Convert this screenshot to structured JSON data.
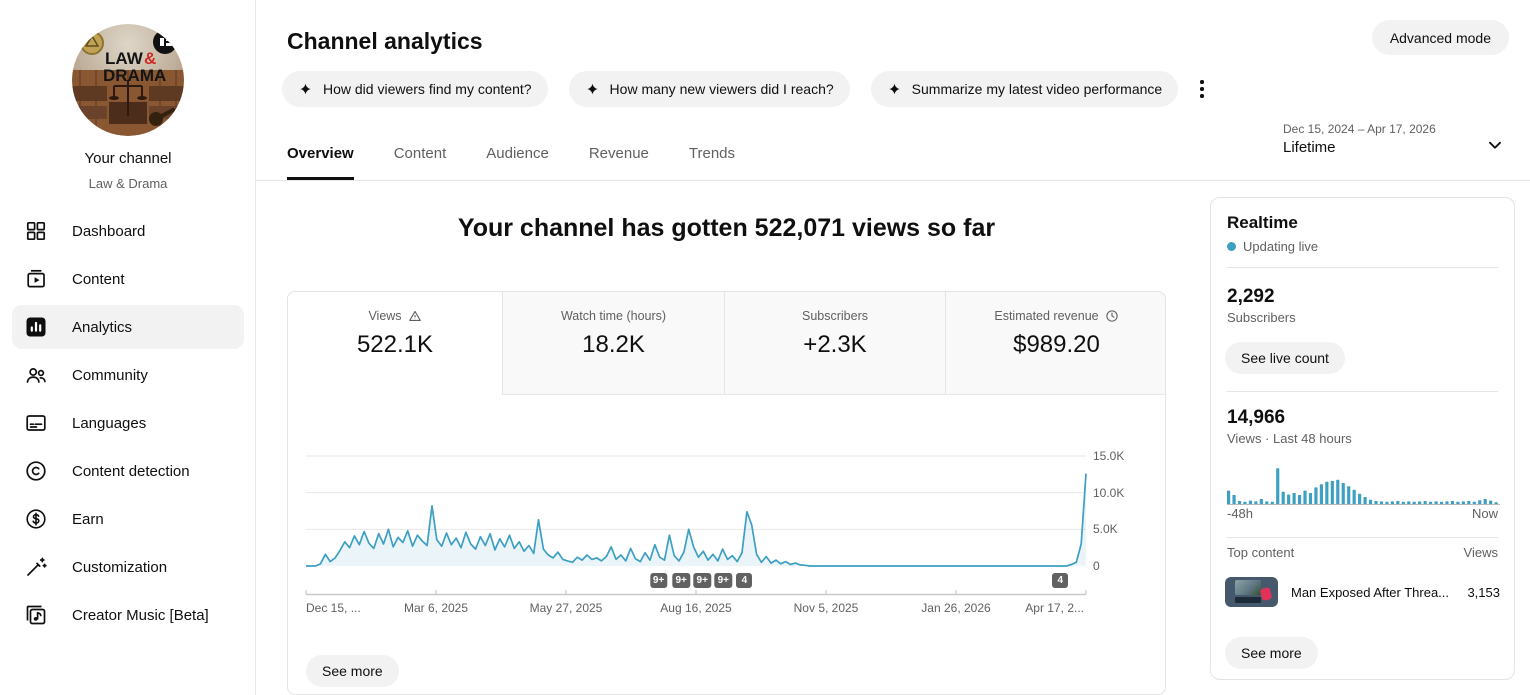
{
  "sidebar": {
    "channel_name": "Your channel",
    "channel_handle": "Law & Drama",
    "avatar_text_line1": "LAW &",
    "avatar_text_line2": "DRAMA",
    "items": [
      {
        "label": "Dashboard",
        "icon": "dashboard",
        "active": false
      },
      {
        "label": "Content",
        "icon": "content",
        "active": false
      },
      {
        "label": "Analytics",
        "icon": "analytics",
        "active": true
      },
      {
        "label": "Community",
        "icon": "community",
        "active": false
      },
      {
        "label": "Languages",
        "icon": "languages",
        "active": false
      },
      {
        "label": "Content detection",
        "icon": "content-detection",
        "active": false
      },
      {
        "label": "Earn",
        "icon": "earn",
        "active": false
      },
      {
        "label": "Customization",
        "icon": "customization",
        "active": false
      },
      {
        "label": "Creator Music [Beta]",
        "icon": "creator-music",
        "active": false
      }
    ]
  },
  "header": {
    "title": "Channel analytics",
    "advanced_mode": "Advanced mode",
    "chips": [
      "How did viewers find my content?",
      "How many new viewers did I reach?",
      "Summarize my latest video performance"
    ]
  },
  "tabs": [
    {
      "label": "Overview",
      "active": true
    },
    {
      "label": "Content",
      "active": false
    },
    {
      "label": "Audience",
      "active": false
    },
    {
      "label": "Revenue",
      "active": false
    },
    {
      "label": "Trends",
      "active": false
    }
  ],
  "date_picker": {
    "range": "Dec 15, 2024 – Apr 17, 2026",
    "preset": "Lifetime"
  },
  "overview": {
    "headline": "Your channel has gotten 522,071 views so far",
    "metrics": [
      {
        "label": "Views",
        "value": "522.1K",
        "icon": "warning",
        "active": true
      },
      {
        "label": "Watch time (hours)",
        "value": "18.2K",
        "icon": null,
        "active": false
      },
      {
        "label": "Subscribers",
        "value": "+2.3K",
        "icon": null,
        "active": false
      },
      {
        "label": "Estimated revenue",
        "value": "$989.20",
        "icon": "clock",
        "active": false
      }
    ],
    "see_more": "See more"
  },
  "realtime": {
    "title": "Realtime",
    "status": "Updating live",
    "subscribers_value": "2,292",
    "subscribers_label": "Subscribers",
    "live_count_button": "See live count",
    "views_value": "14,966",
    "views_label": "Views · Last 48 hours",
    "top_content_label": "Top content",
    "views_col_label": "Views",
    "top_content": [
      {
        "title": "Man Exposed After Threa...",
        "views": "3,153"
      }
    ],
    "see_more": "See more"
  },
  "chart_data": [
    {
      "type": "area",
      "title": "Channel views over time (Lifetime)",
      "x_range": [
        "Dec 15, 2024",
        "Apr 17, 2026"
      ],
      "x_tick_labels": [
        "Dec 15, ...",
        "Mar 6, 2025",
        "May 27, 2025",
        "Aug 16, 2025",
        "Nov 5, 2025",
        "Jan 26, 2026",
        "Apr 17, 2..."
      ],
      "y_tick_labels": [
        "15.0K",
        "10.0K",
        "5.0K",
        "0"
      ],
      "ylim": [
        0,
        15000
      ],
      "grid": true,
      "line_color": "#3d9fc2",
      "fill_color": "rgba(61,159,194,0.10)",
      "values": [
        0,
        0,
        0,
        300,
        1600,
        600,
        1100,
        2100,
        3300,
        2500,
        4100,
        2900,
        4700,
        3100,
        2400,
        4400,
        3000,
        5000,
        2600,
        3900,
        3200,
        4800,
        2700,
        4200,
        3400,
        2800,
        8200,
        3600,
        2700,
        4500,
        2900,
        3800,
        2500,
        4600,
        3000,
        2300,
        4000,
        2800,
        4400,
        2200,
        3700,
        2600,
        4200,
        2400,
        3300,
        2000,
        2800,
        1700,
        6300,
        2300,
        1500,
        1100,
        1900,
        900,
        700,
        500,
        1200,
        800,
        1500,
        900,
        1100,
        700,
        1300,
        2600,
        900,
        1500,
        700,
        2400,
        1000,
        600,
        1800,
        800,
        2900,
        1200,
        800,
        4200,
        1400,
        700,
        1900,
        5000,
        2600,
        1200,
        2000,
        800,
        1600,
        700,
        2300,
        900,
        1400,
        600,
        1800,
        7400,
        5600,
        1600,
        500,
        1300,
        400,
        800,
        300,
        600,
        200,
        400,
        150,
        100,
        0,
        0,
        0,
        0,
        0,
        0,
        0,
        0,
        0,
        0,
        0,
        0,
        0,
        0,
        0,
        0,
        0,
        0,
        0,
        0,
        0,
        0,
        0,
        0,
        0,
        0,
        0,
        0,
        0,
        0,
        0,
        0,
        0,
        0,
        0,
        0,
        0,
        0,
        0,
        0,
        0,
        0,
        0,
        0,
        0,
        0,
        0,
        0,
        0,
        0,
        0,
        0,
        0,
        0,
        200,
        500,
        3000,
        12600
      ],
      "markers": [
        {
          "label": "9+",
          "f": 0.452
        },
        {
          "label": "9+",
          "f": 0.481
        },
        {
          "label": "9+",
          "f": 0.508
        },
        {
          "label": "9+",
          "f": 0.535
        },
        {
          "label": "4",
          "f": 0.562
        },
        {
          "label": "4",
          "f": 0.967
        }
      ]
    },
    {
      "type": "bar",
      "title": "Views · Last 48 hours",
      "x_left_label": "-48h",
      "x_right_label": "Now",
      "bar_color": "#3d9fc2",
      "values": [
        36,
        25,
        10,
        8,
        11,
        9,
        15,
        9,
        8,
        92,
        33,
        26,
        30,
        25,
        36,
        30,
        44,
        52,
        58,
        60,
        63,
        55,
        47,
        38,
        28,
        20,
        13,
        10,
        9,
        8,
        9,
        10,
        8,
        9,
        8,
        9,
        10,
        8,
        9,
        8,
        9,
        10,
        8,
        9,
        10,
        8,
        12,
        15,
        11,
        7
      ]
    }
  ]
}
